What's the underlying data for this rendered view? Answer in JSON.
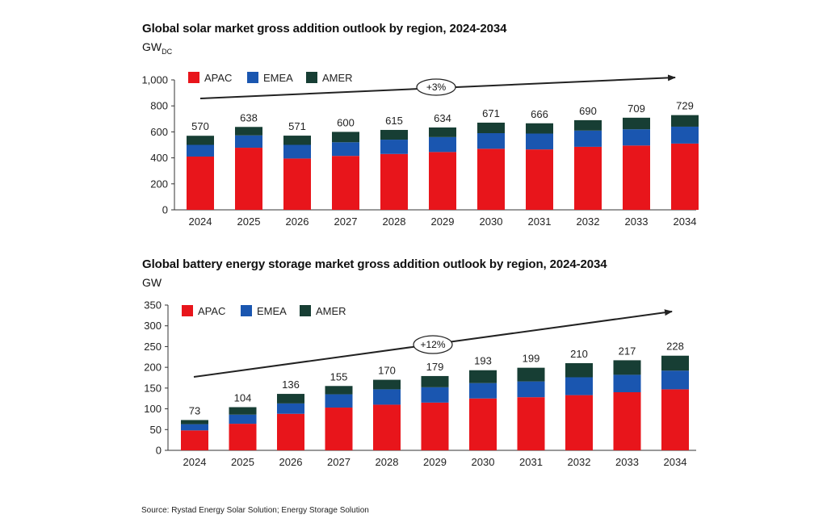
{
  "colors": {
    "apac": "#e8151b",
    "emea": "#1a56b0",
    "amer": "#173e34",
    "axis": "#333333",
    "arrow": "#222222"
  },
  "chart_data": [
    {
      "type": "bar",
      "stacked": true,
      "title": "Global solar market gross addition outlook by region, 2024-2034",
      "unit_main": "GW",
      "unit_sub": "DC",
      "categories": [
        "2024",
        "2025",
        "2026",
        "2027",
        "2028",
        "2029",
        "2030",
        "2031",
        "2032",
        "2033",
        "2034"
      ],
      "totals": [
        570,
        638,
        571,
        600,
        615,
        634,
        671,
        666,
        690,
        709,
        729
      ],
      "total_labels": [
        "570",
        "638",
        "571",
        "600",
        "615",
        "634",
        "671",
        "666",
        "690",
        "709",
        "729"
      ],
      "series": [
        {
          "name": "APAC",
          "values": [
            410,
            478,
            395,
            415,
            430,
            445,
            470,
            465,
            485,
            495,
            510
          ]
        },
        {
          "name": "EMEA",
          "values": [
            90,
            95,
            105,
            105,
            110,
            115,
            120,
            122,
            125,
            125,
            130
          ]
        },
        {
          "name": "AMER",
          "values": [
            70,
            65,
            71,
            80,
            75,
            74,
            81,
            79,
            80,
            89,
            89
          ]
        }
      ],
      "ylim": [
        0,
        1000
      ],
      "yticks": [
        0,
        200,
        400,
        600,
        800,
        1000
      ],
      "ytick_labels": [
        "0",
        "200",
        "400",
        "600",
        "800",
        "1,000"
      ],
      "legend": [
        "APAC",
        "EMEA",
        "AMER"
      ],
      "trend_label": "+3%"
    },
    {
      "type": "bar",
      "stacked": true,
      "title": "Global battery energy storage market gross addition outlook by region, 2024-2034",
      "unit_main": "GW",
      "unit_sub": "",
      "categories": [
        "2024",
        "2025",
        "2026",
        "2027",
        "2028",
        "2029",
        "2030",
        "2031",
        "2032",
        "2033",
        "2034"
      ],
      "totals": [
        73,
        104,
        136,
        155,
        170,
        179,
        193,
        199,
        210,
        217,
        228
      ],
      "total_labels": [
        "73",
        "104",
        "136",
        "155",
        "170",
        "179",
        "193",
        "199",
        "210",
        "217",
        "228"
      ],
      "series": [
        {
          "name": "APAC",
          "values": [
            48,
            64,
            88,
            103,
            110,
            115,
            125,
            128,
            133,
            140,
            147
          ]
        },
        {
          "name": "EMEA",
          "values": [
            15,
            22,
            25,
            32,
            37,
            37,
            37,
            38,
            43,
            42,
            45
          ]
        },
        {
          "name": "AMER",
          "values": [
            10,
            18,
            23,
            20,
            23,
            27,
            31,
            33,
            34,
            35,
            36
          ]
        }
      ],
      "ylim": [
        0,
        350
      ],
      "yticks": [
        0,
        50,
        100,
        150,
        200,
        250,
        300,
        350
      ],
      "ytick_labels": [
        "0",
        "50",
        "100",
        "150",
        "200",
        "250",
        "300",
        "350"
      ],
      "legend": [
        "APAC",
        "EMEA",
        "AMER"
      ],
      "trend_label": "+12%"
    }
  ],
  "source": "Source: Rystad Energy Solar Solution; Energy Storage Solution"
}
